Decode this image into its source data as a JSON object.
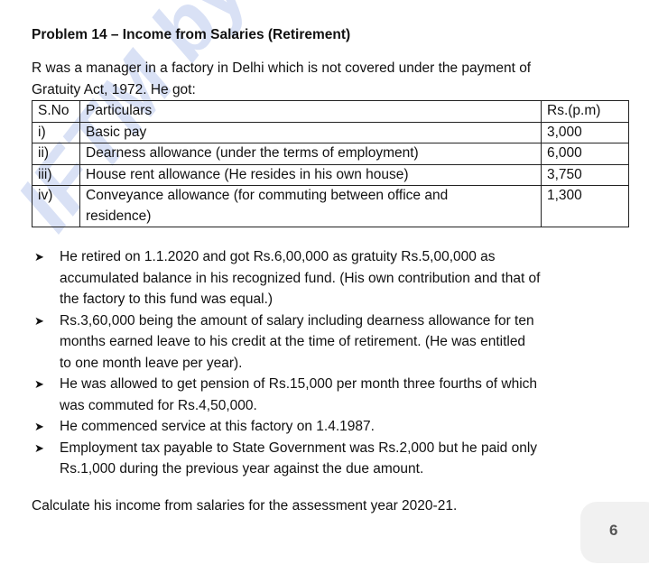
{
  "title": "Problem 14 – Income from Salaries (Retirement)",
  "intro": [
    "R was a manager in a factory in Delhi which is not covered under the payment of",
    "Gratuity Act, 1972. He got:"
  ],
  "table": {
    "headers": [
      "S.No",
      "Particulars",
      "Rs.(p.m)"
    ],
    "rows": [
      {
        "sno": "i)",
        "particulars": [
          "Basic pay"
        ],
        "amount": "3,000"
      },
      {
        "sno": "ii)",
        "particulars": [
          "Dearness allowance (under the terms of employment)"
        ],
        "amount": "6,000"
      },
      {
        "sno": "iii)",
        "particulars": [
          "House rent allowance (He resides in his own house)"
        ],
        "amount": "3,750"
      },
      {
        "sno": "iv)",
        "particulars": [
          "Conveyance allowance (for commuting between office and",
          "residence)"
        ],
        "amount": "1,300"
      }
    ]
  },
  "bullets": [
    [
      "He retired on 1.1.2020 and got Rs.6,00,000 as gratuity Rs.5,00,000 as",
      "accumulated balance in his recognized fund. (His own contribution and that of",
      "the factory to this fund was equal.)"
    ],
    [
      "Rs.3,60,000 being the amount of salary including dearness allowance for ten",
      "months earned leave to his credit at the time of retirement. (He was entitled",
      "to one month leave per year)."
    ],
    [
      "He was allowed to get pension of Rs.15,000 per month three fourths of which",
      "was commuted for Rs.4,50,000."
    ],
    [
      "He commenced service at this factory on 1.4.1987."
    ],
    [
      "Employment tax payable to State Government was Rs.2,000 but he paid only",
      "Rs.1,000 during the previous year against the due amount."
    ]
  ],
  "bullet_icon": "arrowhead-bullet-icon",
  "conclusion": "Calculate his income from salaries for the assessment year 2020-21.",
  "page_number": "6",
  "watermark": "IFTM by IndigoLe",
  "watermark_color": "#5078d2"
}
